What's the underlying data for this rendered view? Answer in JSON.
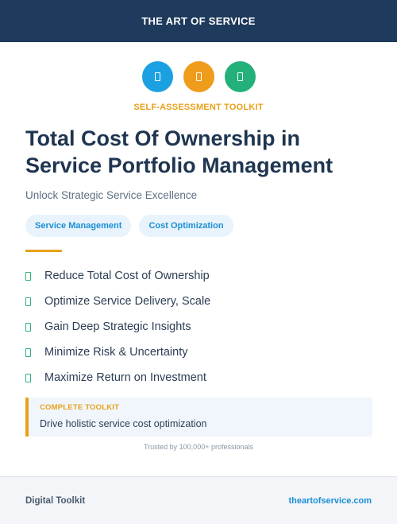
{
  "header": {
    "title": "THE ART OF SERVICE"
  },
  "icons": [
    {
      "name": "document-icon",
      "color": "#1ba1e2"
    },
    {
      "name": "document-icon",
      "color": "#ef9c1b"
    },
    {
      "name": "document-icon",
      "color": "#23b07a"
    }
  ],
  "kicker": "SELF-ASSESSMENT TOOLKIT",
  "title": "Total Cost Of Ownership in Service Portfolio Management",
  "subtitle": "Unlock Strategic Service Excellence",
  "tags": [
    "Service Management",
    "Cost Optimization"
  ],
  "features": [
    "Reduce Total Cost of Ownership",
    "Optimize Service Delivery, Scale",
    "Gain Deep Strategic Insights",
    "Minimize Risk & Uncertainty",
    "Maximize Return on Investment"
  ],
  "callout": {
    "kicker": "COMPLETE TOOLKIT",
    "text": "Drive holistic service cost optimization"
  },
  "trusted": "Trusted by 100,000+ professionals",
  "footer": {
    "left": "Digital Toolkit",
    "right": "theartofservice.com"
  }
}
